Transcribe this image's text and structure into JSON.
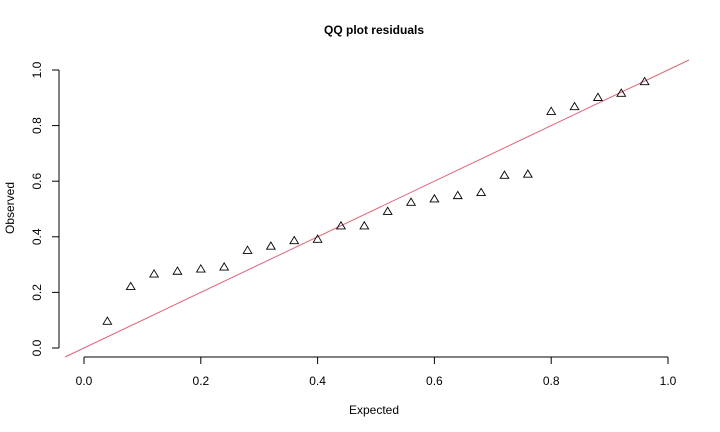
{
  "chart_data": {
    "type": "scatter",
    "title": "QQ plot residuals",
    "xlabel": "Expected",
    "ylabel": "Observed",
    "xlim": [
      0,
      1
    ],
    "ylim": [
      0,
      1
    ],
    "xticks": [
      "0.0",
      "0.2",
      "0.4",
      "0.6",
      "0.8",
      "1.0"
    ],
    "yticks": [
      "0.0",
      "0.2",
      "0.4",
      "0.6",
      "0.8",
      "1.0"
    ],
    "grid": false,
    "marker": "open-triangle",
    "reference_line": {
      "slope": 1,
      "intercept": 0,
      "color": "#e06478"
    },
    "point_color": "#000000",
    "points": [
      {
        "x": 0.04,
        "y": 0.095
      },
      {
        "x": 0.08,
        "y": 0.22
      },
      {
        "x": 0.12,
        "y": 0.265
      },
      {
        "x": 0.16,
        "y": 0.275
      },
      {
        "x": 0.2,
        "y": 0.283
      },
      {
        "x": 0.24,
        "y": 0.29
      },
      {
        "x": 0.28,
        "y": 0.35
      },
      {
        "x": 0.32,
        "y": 0.365
      },
      {
        "x": 0.36,
        "y": 0.385
      },
      {
        "x": 0.4,
        "y": 0.39
      },
      {
        "x": 0.44,
        "y": 0.438
      },
      {
        "x": 0.48,
        "y": 0.438
      },
      {
        "x": 0.52,
        "y": 0.49
      },
      {
        "x": 0.56,
        "y": 0.523
      },
      {
        "x": 0.6,
        "y": 0.535
      },
      {
        "x": 0.64,
        "y": 0.547
      },
      {
        "x": 0.68,
        "y": 0.558
      },
      {
        "x": 0.72,
        "y": 0.62
      },
      {
        "x": 0.76,
        "y": 0.624
      },
      {
        "x": 0.8,
        "y": 0.85
      },
      {
        "x": 0.84,
        "y": 0.867
      },
      {
        "x": 0.88,
        "y": 0.9
      },
      {
        "x": 0.92,
        "y": 0.915
      },
      {
        "x": 0.96,
        "y": 0.957
      }
    ]
  }
}
